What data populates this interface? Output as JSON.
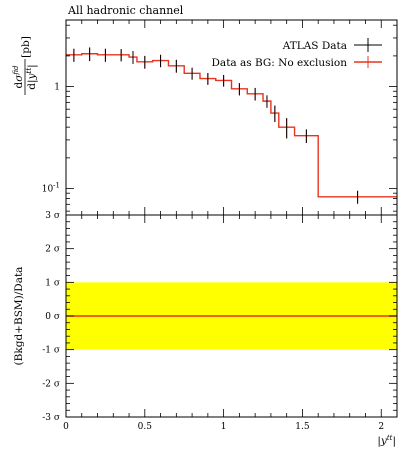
{
  "chart_data": [
    {
      "type": "step",
      "title": "All hadronic channel",
      "ylabel": "dσ^fid / d|y^tt| [pb]",
      "yscale": "log",
      "ylim": [
        0.055,
        4.5
      ],
      "xlim": [
        0,
        2.1
      ],
      "y_ticks": [
        {
          "value": 1,
          "label": "1"
        },
        {
          "value": 0.1,
          "label": "10^-1"
        }
      ],
      "legend": {
        "placement": "top-right",
        "entries": [
          {
            "label": "ATLAS Data",
            "color": "#000000",
            "marker": "errorbar"
          },
          {
            "label": "Data as BG: No exclusion",
            "color": "#e8341c",
            "marker": "line-errorbar"
          }
        ]
      },
      "bins": [
        {
          "x0": 0.0,
          "x1": 0.1,
          "value": 2.05,
          "err": 0.3
        },
        {
          "x0": 0.1,
          "x1": 0.2,
          "value": 2.1,
          "err": 0.32
        },
        {
          "x0": 0.2,
          "x1": 0.3,
          "value": 2.05,
          "err": 0.3
        },
        {
          "x0": 0.3,
          "x1": 0.4,
          "value": 2.05,
          "err": 0.28
        },
        {
          "x0": 0.4,
          "x1": 0.45,
          "value": 1.95,
          "err": 0.28
        },
        {
          "x0": 0.45,
          "x1": 0.55,
          "value": 1.75,
          "err": 0.25
        },
        {
          "x0": 0.55,
          "x1": 0.65,
          "value": 1.8,
          "err": 0.25
        },
        {
          "x0": 0.65,
          "x1": 0.75,
          "value": 1.6,
          "err": 0.23
        },
        {
          "x0": 0.75,
          "x1": 0.85,
          "value": 1.35,
          "err": 0.18
        },
        {
          "x0": 0.85,
          "x1": 0.95,
          "value": 1.2,
          "err": 0.16
        },
        {
          "x0": 0.95,
          "x1": 1.05,
          "value": 1.15,
          "err": 0.15
        },
        {
          "x0": 1.05,
          "x1": 1.15,
          "value": 0.95,
          "err": 0.13
        },
        {
          "x0": 1.15,
          "x1": 1.25,
          "value": 0.85,
          "err": 0.12
        },
        {
          "x0": 1.25,
          "x1": 1.3,
          "value": 0.72,
          "err": 0.1
        },
        {
          "x0": 1.3,
          "x1": 1.35,
          "value": 0.55,
          "err": 0.1
        },
        {
          "x0": 1.35,
          "x1": 1.45,
          "value": 0.4,
          "err": 0.09
        },
        {
          "x0": 1.45,
          "x1": 1.6,
          "value": 0.33,
          "err": 0.05
        },
        {
          "x0": 1.6,
          "x1": 2.1,
          "value": 0.083,
          "err": 0.012
        }
      ]
    },
    {
      "type": "line",
      "ylabel": "(Bkgd+BSM)/Data",
      "xlabel": "|y^tt|",
      "xlim": [
        0,
        2.1
      ],
      "ylim": [
        -3,
        3
      ],
      "x_ticks": [
        {
          "value": 0,
          "label": "0"
        },
        {
          "value": 0.5,
          "label": "0.5"
        },
        {
          "value": 1,
          "label": "1"
        },
        {
          "value": 1.5,
          "label": "1.5"
        },
        {
          "value": 2,
          "label": "2"
        }
      ],
      "y_ticks": [
        {
          "value": 3,
          "label": "3 σ"
        },
        {
          "value": 2,
          "label": "2 σ"
        },
        {
          "value": 1,
          "label": "1 σ"
        },
        {
          "value": 0,
          "label": "0 σ"
        },
        {
          "value": -1,
          "label": "-1 σ"
        },
        {
          "value": -2,
          "label": "-2 σ"
        },
        {
          "value": -3,
          "label": "-3 σ"
        }
      ],
      "band": {
        "low": -1,
        "high": 1,
        "color": "#ffff00"
      },
      "series": [
        {
          "x": [
            0,
            2.1
          ],
          "values": [
            0,
            0
          ],
          "color": "#e8341c"
        }
      ]
    }
  ]
}
